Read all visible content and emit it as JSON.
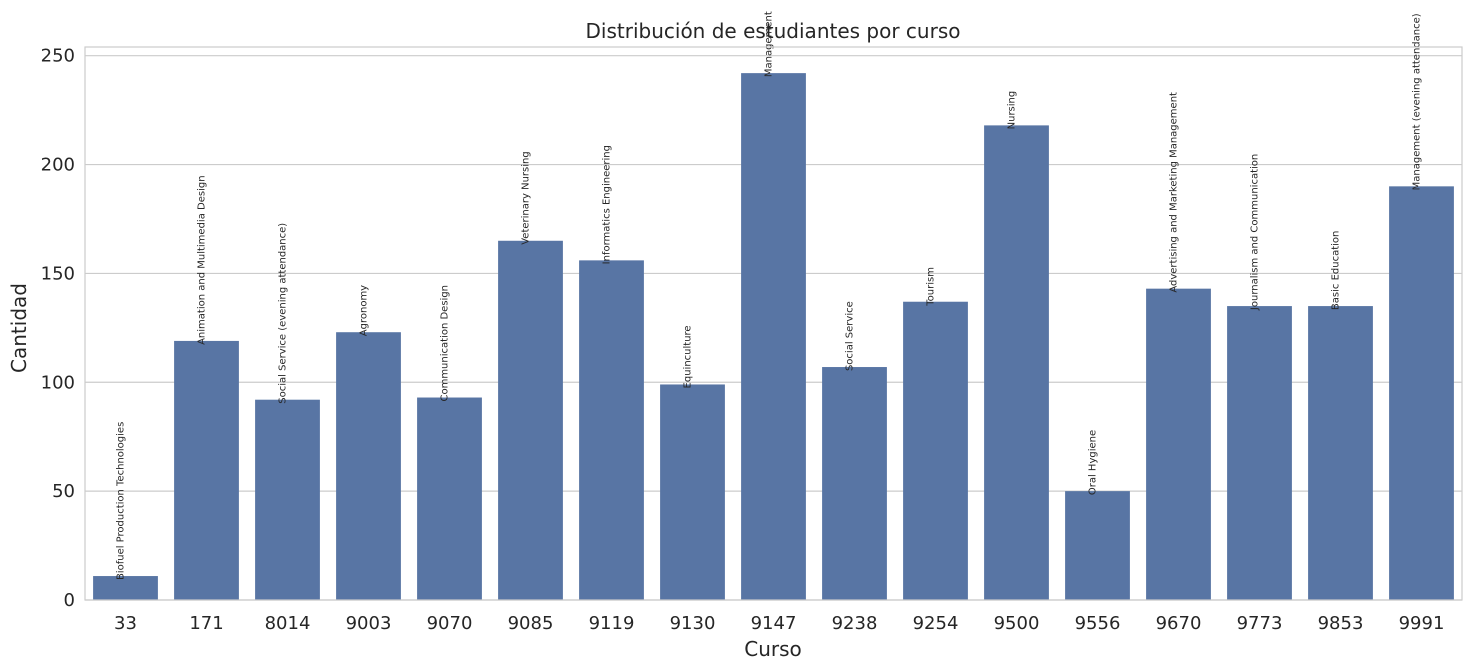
{
  "chart_data": {
    "type": "bar",
    "title": "Distribución de estudiantes por curso",
    "xlabel": "Curso",
    "ylabel": "Cantidad",
    "ylim": [
      0,
      254
    ],
    "yticks": [
      0,
      50,
      100,
      150,
      200,
      250
    ],
    "grid": "horizontal",
    "bar_color": "#5875a4",
    "grid_color": "#cccccc",
    "categories": [
      "33",
      "171",
      "8014",
      "9003",
      "9070",
      "9085",
      "9119",
      "9130",
      "9147",
      "9238",
      "9254",
      "9500",
      "9556",
      "9670",
      "9773",
      "9853",
      "9991"
    ],
    "values": [
      11,
      119,
      92,
      123,
      93,
      165,
      156,
      99,
      242,
      107,
      137,
      218,
      50,
      143,
      135,
      135,
      190
    ],
    "bar_labels": [
      "Biofuel Production Technologies",
      "Animation and Multimedia Design",
      "Social Service (evening attendance)",
      "Agronomy",
      "Communication Design",
      "Veterinary Nursing",
      "Informatics Engineering",
      "Equinculture",
      "Management",
      "Social Service",
      "Tourism",
      "Nursing",
      "Oral Hygiene",
      "Advertising and Marketing Management",
      "Journalism and Communication",
      "Basic Education",
      "Management (evening attendance)"
    ]
  }
}
